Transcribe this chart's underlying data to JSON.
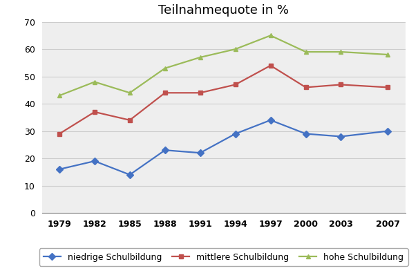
{
  "title": "Teilnahmequote in %",
  "years": [
    1979,
    1982,
    1985,
    1988,
    1991,
    1994,
    1997,
    2000,
    2003,
    2007
  ],
  "series": [
    {
      "label": "niedrige Schulbildung",
      "values": [
        16,
        19,
        14,
        23,
        22,
        29,
        34,
        29,
        28,
        30
      ],
      "color": "#4472C4",
      "marker": "D"
    },
    {
      "label": "mittlere Schulbildung",
      "values": [
        29,
        37,
        34,
        44,
        44,
        47,
        54,
        46,
        47,
        46
      ],
      "color": "#C0504D",
      "marker": "s"
    },
    {
      "label": "hohe Schulbildung",
      "values": [
        43,
        48,
        44,
        53,
        57,
        60,
        65,
        59,
        59,
        58
      ],
      "color": "#9BBB59",
      "marker": "^"
    }
  ],
  "ylim": [
    0,
    70
  ],
  "yticks": [
    0,
    10,
    20,
    30,
    40,
    50,
    60,
    70
  ],
  "fig_bg_color": "#FFFFFF",
  "plot_bg_color": "#EEEEEE",
  "grid_color": "#CCCCCC",
  "title_fontsize": 13,
  "legend_fontsize": 9,
  "tick_fontsize": 9,
  "markersize": 5,
  "linewidth": 1.6
}
